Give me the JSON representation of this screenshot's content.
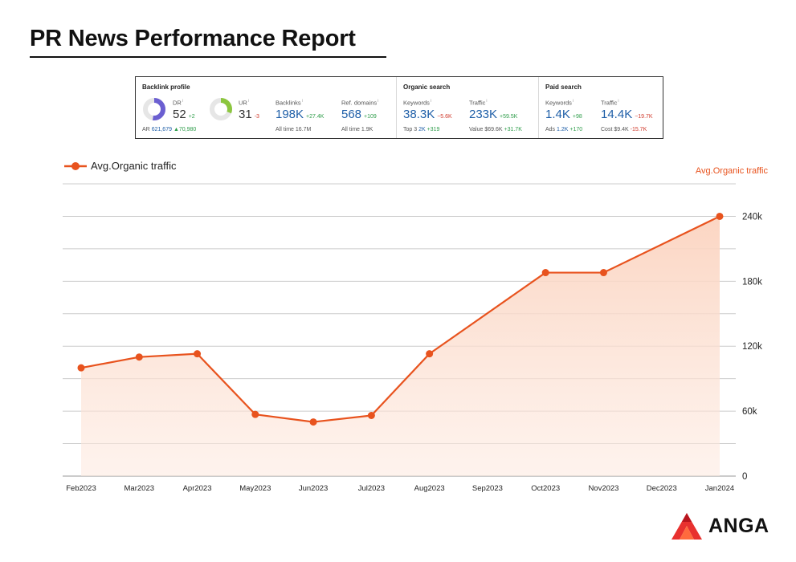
{
  "page": {
    "title": "PR News Performance Report"
  },
  "metrics": {
    "backlink_profile": {
      "title": "Backlink profile",
      "dr": {
        "label": "DR",
        "value": "52",
        "delta": "+2",
        "fill": 0.52
      },
      "ar": {
        "label": "AR",
        "value": "621,679",
        "delta": "▲70,980"
      },
      "ur": {
        "label": "UR",
        "value": "31",
        "delta": "-3",
        "fill": 0.31
      },
      "backlinks": {
        "label": "Backlinks",
        "value": "198K",
        "delta": "+27.4K",
        "sub_label": "All time",
        "sub_value": "16.7M"
      },
      "ref_domains": {
        "label": "Ref. domains",
        "value": "568",
        "delta": "+109",
        "sub_label": "All time",
        "sub_value": "1.9K"
      }
    },
    "organic_search": {
      "title": "Organic search",
      "keywords": {
        "label": "Keywords",
        "value": "38.3K",
        "delta": "−5.6K",
        "sub_label": "Top 3",
        "sub_value": "2K",
        "sub_delta": "+319"
      },
      "traffic": {
        "label": "Traffic",
        "value": "233K",
        "delta": "+59.5K",
        "sub_label": "Value",
        "sub_value": "$69.6K",
        "sub_delta": "+31.7K"
      }
    },
    "paid_search": {
      "title": "Paid search",
      "keywords": {
        "label": "Keywords",
        "value": "1.4K",
        "delta": "+98",
        "sub_label": "Ads",
        "sub_value": "1.2K",
        "sub_delta": "+170"
      },
      "traffic": {
        "label": "Traffic",
        "value": "14.4K",
        "delta": "−19.7K",
        "sub_label": "Cost",
        "sub_value": "$9.4K",
        "sub_delta": "-15.7K"
      }
    }
  },
  "colors": {
    "accent": "#e8531e",
    "area": "#fde3d6",
    "grid": "#c8c8c8",
    "dr_ring": "#6b5fd1",
    "ur_ring": "#8cc63f",
    "value_blue": "#1f5fa8"
  },
  "chart_data": {
    "type": "area",
    "series_name": "Avg.Organic traffic",
    "axis_label": "Avg.Organic traffic",
    "categories": [
      "Feb2023",
      "Mar2023",
      "Apr2023",
      "May2023",
      "Jun2023",
      "Jul2023",
      "Aug2023",
      "Sep2023",
      "Oct2023",
      "Nov2023",
      "Dec2023",
      "Jan2024"
    ],
    "values": [
      100000,
      110000,
      113000,
      57000,
      50000,
      56000,
      113000,
      null,
      188000,
      188000,
      null,
      240000
    ],
    "y_ticks": [
      0,
      60000,
      120000,
      180000,
      240000
    ],
    "y_tick_labels": [
      "0",
      "60k",
      "120k",
      "180k",
      "240k"
    ],
    "ylim": [
      0,
      270000
    ],
    "y_axis_position": "right",
    "grid": true,
    "legend": "top-left"
  },
  "logo": {
    "text": "ANGA",
    "icon": "anga-logo-icon"
  }
}
